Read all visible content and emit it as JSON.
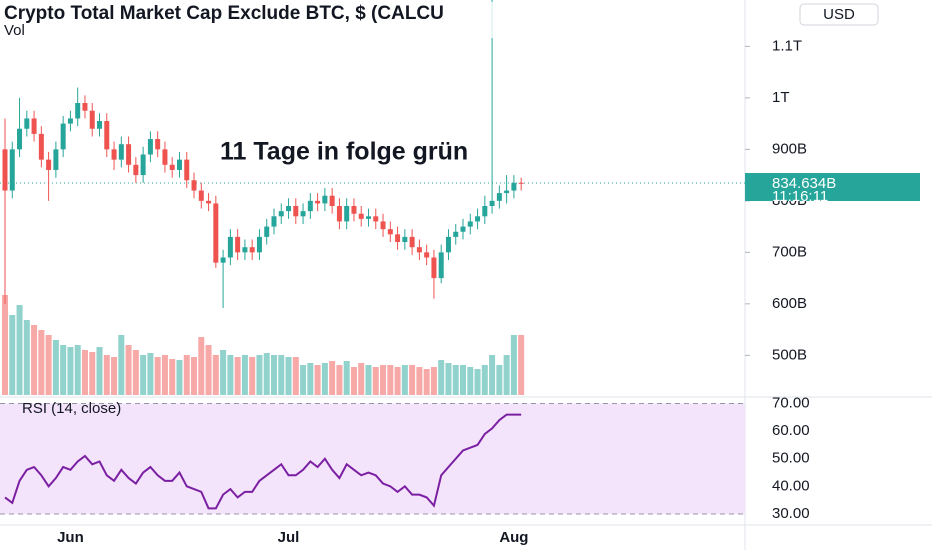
{
  "title": "Crypto Total Market Cap Exclude BTC, $ (CALCU",
  "volume_label": "Vol",
  "currency_button": "USD",
  "annotation": "11 Tage in folge grün",
  "countdown": "11:16:11",
  "chart_data": [
    {
      "type": "candlestick",
      "up_color": "#26a69a",
      "down_color": "#ef5350",
      "categories": [
        null,
        null,
        null,
        null,
        null,
        null,
        null,
        null,
        null,
        "Jun",
        null,
        null,
        null,
        null,
        null,
        null,
        null,
        null,
        null,
        null,
        null,
        null,
        null,
        null,
        null,
        null,
        null,
        null,
        null,
        null,
        null,
        null,
        null,
        null,
        null,
        null,
        null,
        null,
        null,
        "Jul",
        null,
        null,
        null,
        null,
        null,
        null,
        null,
        null,
        null,
        null,
        null,
        null,
        null,
        null,
        null,
        null,
        null,
        null,
        null,
        null,
        null,
        null,
        null,
        null,
        null,
        null,
        null,
        null,
        null,
        null,
        "Aug",
        null
      ],
      "open": [
        900,
        820,
        900,
        940,
        960,
        930,
        880,
        860,
        900,
        950,
        960,
        990,
        975,
        940,
        955,
        900,
        880,
        910,
        870,
        850,
        890,
        920,
        900,
        870,
        860,
        880,
        840,
        820,
        800,
        795,
        680,
        690,
        730,
        700,
        710,
        700,
        730,
        750,
        770,
        780,
        790,
        770,
        780,
        800,
        795,
        810,
        790,
        760,
        790,
        775,
        765,
        770,
        760,
        745,
        735,
        720,
        730,
        710,
        700,
        690,
        650,
        700,
        730,
        740,
        750,
        760,
        770,
        790,
        800,
        815,
        820,
        835
      ],
      "high": [
        960,
        915,
        1000,
        975,
        975,
        945,
        895,
        915,
        965,
        975,
        1020,
        1005,
        990,
        970,
        970,
        915,
        925,
        925,
        885,
        905,
        935,
        935,
        915,
        885,
        895,
        895,
        855,
        835,
        815,
        810,
        705,
        745,
        745,
        725,
        725,
        745,
        765,
        785,
        795,
        805,
        805,
        795,
        815,
        815,
        825,
        825,
        805,
        805,
        805,
        790,
        785,
        785,
        775,
        760,
        750,
        745,
        745,
        725,
        715,
        705,
        715,
        745,
        755,
        765,
        775,
        785,
        810,
        1190,
        830,
        850,
        850,
        845
      ],
      "low": [
        600,
        805,
        885,
        925,
        915,
        865,
        800,
        845,
        885,
        935,
        945,
        960,
        925,
        925,
        885,
        860,
        865,
        855,
        835,
        835,
        875,
        885,
        855,
        845,
        845,
        825,
        805,
        785,
        780,
        670,
        592,
        675,
        685,
        685,
        685,
        685,
        715,
        735,
        755,
        765,
        755,
        755,
        765,
        780,
        780,
        775,
        745,
        745,
        760,
        750,
        750,
        745,
        730,
        720,
        705,
        705,
        695,
        685,
        675,
        610,
        640,
        685,
        715,
        725,
        735,
        745,
        755,
        775,
        785,
        795,
        805,
        820
      ],
      "close": [
        820,
        900,
        940,
        960,
        930,
        880,
        860,
        900,
        950,
        960,
        990,
        975,
        940,
        955,
        900,
        880,
        910,
        870,
        850,
        890,
        920,
        900,
        870,
        860,
        880,
        840,
        820,
        800,
        795,
        680,
        690,
        730,
        700,
        710,
        700,
        730,
        750,
        770,
        780,
        790,
        770,
        780,
        800,
        795,
        810,
        790,
        760,
        790,
        775,
        765,
        770,
        760,
        745,
        735,
        720,
        730,
        710,
        700,
        690,
        650,
        700,
        730,
        740,
        750,
        760,
        770,
        790,
        800,
        815,
        820,
        835,
        834.634
      ],
      "volume": [
        100,
        80,
        90,
        75,
        70,
        65,
        60,
        55,
        50,
        48,
        50,
        45,
        43,
        48,
        40,
        38,
        60,
        50,
        45,
        40,
        42,
        38,
        40,
        36,
        35,
        40,
        38,
        58,
        50,
        40,
        45,
        40,
        38,
        40,
        38,
        40,
        42,
        40,
        40,
        38,
        38,
        30,
        32,
        30,
        32,
        34,
        30,
        34,
        28,
        32,
        30,
        28,
        30,
        30,
        28,
        30,
        30,
        28,
        26,
        28,
        35,
        32,
        30,
        30,
        28,
        26,
        30,
        40,
        30,
        40,
        60,
        60
      ],
      "current_price": {
        "value": 834.634,
        "label": "834.634B"
      },
      "ylim": [
        423,
        1190
      ],
      "yticks": [
        {
          "value": 500,
          "label": "500B"
        },
        {
          "value": 600,
          "label": "600B"
        },
        {
          "value": 700,
          "label": "700B"
        },
        {
          "value": 800,
          "label": "800B"
        },
        {
          "value": 900,
          "label": "900B"
        },
        {
          "value": 1000,
          "label": "1T"
        },
        {
          "value": 1100,
          "label": "1.1T"
        }
      ]
    },
    {
      "type": "line",
      "title": "RSI (14, close)",
      "color": "#7b1fa2",
      "band_color": "#f3e3fb",
      "values": [
        36,
        34,
        42,
        46,
        47,
        44,
        40,
        43,
        47,
        46,
        49,
        51,
        48,
        49,
        44,
        42,
        46,
        43,
        41,
        45,
        47,
        44,
        42,
        42,
        45,
        40,
        39,
        38,
        32,
        32,
        37,
        39,
        36,
        38,
        38,
        42,
        44,
        46,
        48,
        44,
        44,
        46,
        49,
        47,
        50,
        46,
        43,
        48,
        46,
        44,
        45,
        44,
        41,
        40,
        38,
        40,
        37,
        37,
        36,
        33,
        44,
        47,
        50,
        53,
        54,
        55,
        59,
        61,
        64,
        66,
        66,
        66
      ],
      "ylim": [
        26,
        72
      ],
      "yticks": [
        {
          "value": 30,
          "label": "30.00"
        },
        {
          "value": 40,
          "label": "40.00"
        },
        {
          "value": 50,
          "label": "50.00"
        },
        {
          "value": 60,
          "label": "60.00"
        },
        {
          "value": 70,
          "label": "70.00"
        }
      ]
    }
  ]
}
